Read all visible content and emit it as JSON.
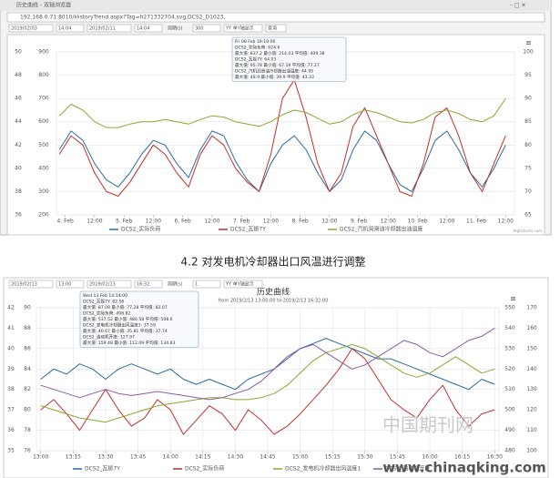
{
  "browser": {
    "title": "历史曲线 - 双轴浏览器",
    "url": "192.168.0.71:8010/HistoryTrend.aspx?Tag=h271332704.svg,DCS2_D1023,"
  },
  "toolbars": [
    {
      "start_date": "2019/02/03",
      "start_time": "14:04",
      "end_date": "2019/02/11",
      "end_time": "14:04",
      "period_label": "周期(s)",
      "period": "300",
      "mode": "YY 单Y轴显示",
      "query": "查询"
    },
    {
      "start_date": "2019/02/13",
      "start_time": "13:00",
      "end_date": "2019/02/13",
      "end_time": "16:32",
      "period_label": "周期(s)",
      "period": "1",
      "mode": "YY 单Y轴显示"
    }
  ],
  "caption": "4.2 对发电机冷却器出口风温进行调整",
  "watermark": {
    "cn": "中国期刊网",
    "url": "www.chinaqking.com"
  },
  "chart_data": [
    {
      "type": "line",
      "credits": "Highcharts.com",
      "grid": true,
      "tooltip": [
        "Fri 08 Feb 19:19:00",
        "DCS2_实际负荷: 624.6",
        "最大值: 837.2 最小值: 214.03 平均值: 409.38",
        "DCS2_瓦振7Y: 64.03",
        "最大值: 95.78 最小值: 67.19 平均值: 77.27",
        "DCS2_汽机润滑油冷却器出油温度: 44.95",
        "最大值: 48.9 最小值: 39.9 平均值: 43.33"
      ],
      "xlim": [
        3.85,
        11.65
      ],
      "xticks": [
        {
          "value": 4,
          "label": "4. Feb"
        },
        {
          "value": 4.5,
          "label": "12:00"
        },
        {
          "value": 5,
          "label": "5. Feb"
        },
        {
          "value": 5.5,
          "label": "12:00"
        },
        {
          "value": 6,
          "label": "6. Feb"
        },
        {
          "value": 6.5,
          "label": "12:00"
        },
        {
          "value": 7,
          "label": "7. Feb"
        },
        {
          "value": 7.5,
          "label": "12:00"
        },
        {
          "value": 8,
          "label": "8. Feb"
        },
        {
          "value": 8.5,
          "label": "12:00"
        },
        {
          "value": 9,
          "label": "9. Feb"
        },
        {
          "value": 9.5,
          "label": "12:00"
        },
        {
          "value": 10,
          "label": "10. Feb"
        },
        {
          "value": 10.5,
          "label": "12:00"
        },
        {
          "value": 11,
          "label": "11. Feb"
        },
        {
          "value": 11.5,
          "label": "12:00"
        }
      ],
      "ylim": [
        36,
        50
      ],
      "yticks": [
        36,
        38,
        40,
        42,
        44,
        46,
        48,
        50
      ],
      "y2lim": [
        200,
        900
      ],
      "y2ticks": [
        200,
        300,
        400,
        500,
        600,
        700,
        800,
        900
      ],
      "y3lim": [
        65,
        100
      ],
      "y3ticks": [
        65,
        70,
        75,
        80,
        85,
        90,
        95,
        100
      ],
      "x": [
        3.9,
        4.1,
        4.3,
        4.5,
        4.7,
        4.9,
        5.1,
        5.3,
        5.5,
        5.7,
        5.9,
        6.1,
        6.3,
        6.5,
        6.7,
        6.9,
        7.1,
        7.3,
        7.5,
        7.7,
        7.9,
        8.1,
        8.3,
        8.5,
        8.7,
        8.9,
        9.1,
        9.3,
        9.5,
        9.7,
        9.9,
        10.1,
        10.3,
        10.5,
        10.7,
        10.9,
        11.1,
        11.3,
        11.5
      ],
      "series": [
        {
          "name": "DCS2_实际负荷",
          "color": "#2b6ca3",
          "axis": "y2",
          "values": [
            480,
            560,
            520,
            420,
            350,
            320,
            380,
            460,
            520,
            500,
            420,
            360,
            480,
            560,
            540,
            430,
            350,
            300,
            420,
            500,
            540,
            480,
            380,
            300,
            350,
            480,
            560,
            520,
            420,
            330,
            300,
            400,
            520,
            560,
            480,
            380,
            320,
            400,
            500
          ]
        },
        {
          "name": "DCS2_瓦振7Y",
          "color": "#c0302b",
          "axis": "y3",
          "values": [
            78,
            82,
            80,
            74,
            70,
            69,
            72,
            76,
            80,
            78,
            74,
            71,
            78,
            82,
            80,
            75,
            72,
            70,
            78,
            90,
            94,
            86,
            76,
            70,
            74,
            84,
            88,
            82,
            76,
            70,
            69,
            76,
            86,
            88,
            82,
            74,
            70,
            76,
            82
          ]
        },
        {
          "name": "DCS2_汽机润滑油冷却器出油温度",
          "color": "#8aa832",
          "axis": "y",
          "values": [
            44.5,
            45.5,
            45,
            44,
            43.5,
            43.5,
            43.8,
            44,
            44,
            44.2,
            44,
            43.8,
            44.2,
            44.5,
            44.4,
            44,
            43.8,
            43.6,
            44,
            44.6,
            45,
            44.8,
            44.3,
            43.8,
            44,
            44.6,
            45,
            44.8,
            44.4,
            44,
            43.9,
            44.2,
            44.8,
            45,
            44.7,
            44.2,
            44,
            44.5,
            46
          ]
        }
      ]
    },
    {
      "type": "line",
      "title": "历史曲线",
      "subtitle": "from 2019/2/13 13:00:00 to 2019/2/13 16:32:00",
      "grid": true,
      "tooltip": [
        "Wed 13 Feb 14:14:00",
        "DCS2_瓦振7Y: 82.56",
        "最大值: 87.09 最小值: 77.28 平均值: 82.07",
        "DCS2_实际负荷: 498.82",
        "最大值: 537.52 最小值: 486.58 平均值: 508.6",
        "DCS2_发电机冷却器出风温度1: 37.59",
        "最大值: 40.67 最小值: 35.81 平均值: 37.74",
        "DCS2_油动机开度: 127.97",
        "最大值: 159.48 最小值: 112.09 平均值: 134.83"
      ],
      "xlim": [
        -2,
        212
      ],
      "xticks": [
        {
          "value": 0,
          "label": "13:00"
        },
        {
          "value": 15,
          "label": "13:15"
        },
        {
          "value": 30,
          "label": "13:30"
        },
        {
          "value": 45,
          "label": "13:45"
        },
        {
          "value": 60,
          "label": "14:00"
        },
        {
          "value": 75,
          "label": "14:15"
        },
        {
          "value": 90,
          "label": "14:30"
        },
        {
          "value": 105,
          "label": "14:45"
        },
        {
          "value": 120,
          "label": "15:00"
        },
        {
          "value": 135,
          "label": "15:15"
        },
        {
          "value": 150,
          "label": "15:30"
        },
        {
          "value": 165,
          "label": "15:45"
        },
        {
          "value": 180,
          "label": "16:00"
        },
        {
          "value": 195,
          "label": "16:15"
        },
        {
          "value": 210,
          "label": "16:30"
        }
      ],
      "ylim": [
        35,
        42
      ],
      "yticks": [
        35,
        36,
        37,
        38,
        39,
        40,
        41,
        42
      ],
      "y2lim": [
        76,
        90
      ],
      "y2ticks": [
        76,
        78,
        80,
        82,
        84,
        86,
        88,
        90
      ],
      "y3lim": [
        480,
        550
      ],
      "y3ticks": [
        480,
        490,
        500,
        510,
        520,
        530,
        540,
        550
      ],
      "y4lim": [
        100,
        170
      ],
      "y4ticks": [
        100,
        110,
        120,
        130,
        140,
        150,
        160,
        170
      ],
      "x": [
        0,
        6,
        12,
        18,
        24,
        30,
        36,
        42,
        48,
        54,
        60,
        66,
        72,
        78,
        84,
        90,
        96,
        102,
        108,
        114,
        120,
        126,
        132,
        138,
        144,
        150,
        156,
        162,
        168,
        174,
        180,
        186,
        192,
        198,
        204,
        210
      ],
      "series": [
        {
          "name": "DCS2_瓦振7Y",
          "color": "#2b6ca3",
          "axis": "y2",
          "values": [
            83,
            84,
            83.5,
            84.5,
            84,
            83,
            84,
            84.5,
            84,
            83.5,
            84,
            83,
            82.5,
            83,
            82.5,
            82,
            83,
            83.5,
            84,
            85,
            86,
            86.5,
            87,
            86.5,
            86,
            85.5,
            85,
            85,
            84.5,
            84,
            83.5,
            83,
            82.5,
            82,
            83,
            82.5
          ]
        },
        {
          "name": "DCS2_实际负荷",
          "color": "#c0302b",
          "axis": "y3",
          "values": [
            500,
            505,
            498,
            490,
            500,
            510,
            500,
            492,
            496,
            505,
            500,
            488,
            495,
            502,
            498,
            490,
            500,
            495,
            488,
            492,
            498,
            505,
            512,
            520,
            530,
            525,
            515,
            505,
            500,
            496,
            505,
            512,
            500,
            492,
            498,
            500
          ]
        },
        {
          "name": "DCS2_发电机冷却器出风温度1",
          "color": "#8aa832",
          "axis": "y",
          "values": [
            37.2,
            37,
            36.8,
            36.6,
            36.5,
            36.4,
            36.6,
            36.8,
            37,
            37.2,
            37.3,
            37.4,
            37.5,
            37.6,
            37.6,
            37.5,
            37.5,
            37.6,
            37.8,
            38.2,
            38.8,
            39.4,
            39.8,
            40,
            40.2,
            40,
            39.6,
            39.2,
            38.8,
            38.6,
            38.8,
            39.2,
            39.6,
            39.2,
            38.8,
            39
          ]
        },
        {
          "name": "DCS2_油动机开度",
          "color": "#8a5aa8",
          "axis": "y4",
          "values": [
            132,
            130,
            128,
            126,
            128,
            130,
            128,
            127,
            128,
            129,
            128,
            127,
            126,
            125,
            126,
            128,
            130,
            134,
            140,
            146,
            150,
            152,
            148,
            144,
            140,
            142,
            146,
            150,
            154,
            152,
            148,
            146,
            150,
            154,
            156,
            160
          ]
        }
      ]
    }
  ]
}
